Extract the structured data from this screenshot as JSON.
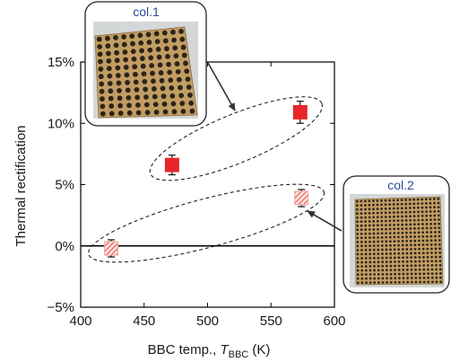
{
  "chart_data": {
    "type": "scatter",
    "title": "",
    "xlabel": "BBC temp., T_BBC (K)",
    "xlabel_prefix": "BBC temp., ",
    "xlabel_symbol": "T",
    "xlabel_subscript": "BBC",
    "xlabel_unit": " (K)",
    "ylabel": "Thermal rectification",
    "xlim": [
      400,
      600
    ],
    "ylim": [
      -5,
      15
    ],
    "x_ticks": [
      400,
      450,
      500,
      550,
      600
    ],
    "y_ticks": [
      -5,
      0,
      5,
      10,
      15
    ],
    "y_tick_labels": [
      "−5%",
      "0%",
      "5%",
      "10%",
      "15%"
    ],
    "grid": false,
    "zero_line": true,
    "series": [
      {
        "name": "col.1",
        "style": "solid",
        "color": "#e8262a",
        "points": [
          {
            "x": 472,
            "y": 6.6,
            "err": 0.8
          },
          {
            "x": 573,
            "y": 10.9,
            "err": 0.9
          }
        ]
      },
      {
        "name": "col.2",
        "style": "hatched",
        "color": "#ef8a7e",
        "points": [
          {
            "x": 424,
            "y": -0.2,
            "err": 0.7
          },
          {
            "x": 574,
            "y": 3.9,
            "err": 0.7
          }
        ]
      }
    ],
    "insets": [
      {
        "caption": "col.1",
        "image": "sample photo, 11x11 hole array in tan plate",
        "points_to": "col.1 group"
      },
      {
        "caption": "col.2",
        "image": "sample photo, dense hole array in tan plate",
        "points_to": "col.2 group"
      }
    ],
    "colors": {
      "axis": "#000000",
      "caption": "#2b4a9a",
      "plate": "#c29d63",
      "hole": "#2a2418"
    }
  }
}
